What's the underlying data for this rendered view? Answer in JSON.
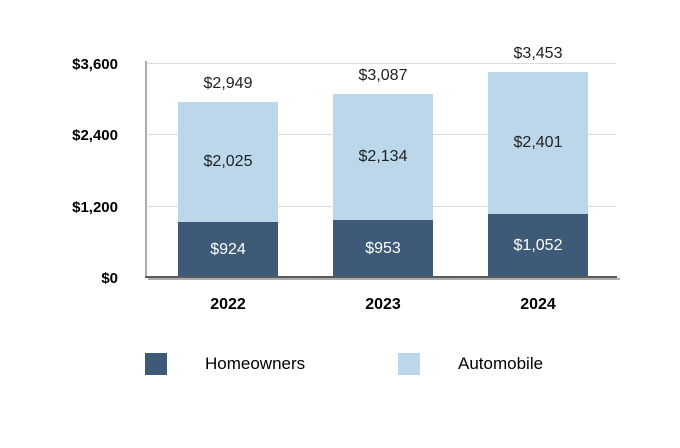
{
  "chart_data": {
    "type": "bar",
    "stacked": true,
    "title": "",
    "categories": [
      "2022",
      "2023",
      "2024"
    ],
    "series": [
      {
        "name": "Homeowners",
        "color": "#3D5A76",
        "text_color": "#FFFFFF",
        "values": [
          924,
          953,
          1052
        ],
        "labels": [
          "$924",
          "$953",
          "$1,052"
        ]
      },
      {
        "name": "Automobile",
        "color": "#BCD7EA",
        "text_color": "#1F1F1F",
        "values": [
          2025,
          2134,
          2401
        ],
        "labels": [
          "$2,025",
          "$2,134",
          "$2,401"
        ]
      }
    ],
    "totals": [
      2949,
      3087,
      3453
    ],
    "total_labels": [
      "$2,949",
      "$3,087",
      "$3,453"
    ],
    "y_ticks": [
      {
        "value": 0,
        "label": "$0"
      },
      {
        "value": 1200,
        "label": "$1,200"
      },
      {
        "value": 2400,
        "label": "$2,400"
      },
      {
        "value": 3600,
        "label": "$3,600"
      }
    ],
    "ylim": [
      0,
      3600
    ],
    "xlabel": "",
    "ylabel": "",
    "grid": "horizontal",
    "legend_position": "bottom"
  }
}
